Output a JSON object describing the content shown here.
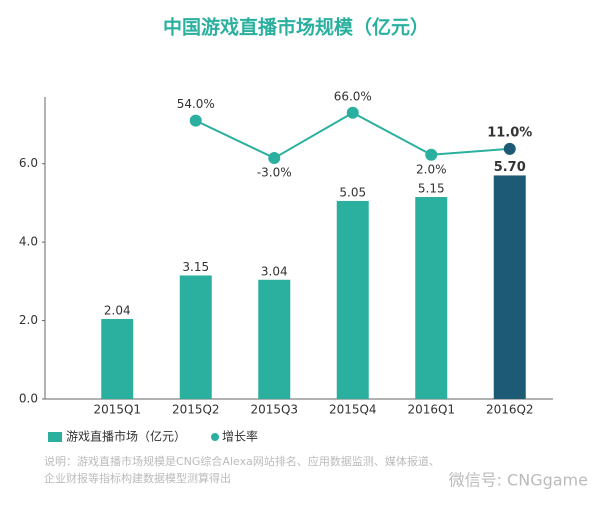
{
  "chart_data": {
    "type": "bar_line",
    "title": "中国游戏直播市场规模（亿元）",
    "categories": [
      "2015Q1",
      "2015Q2",
      "2015Q3",
      "2015Q4",
      "2016Q1",
      "2016Q2"
    ],
    "series": [
      {
        "name": "游戏直播市场（亿元）",
        "type": "bar",
        "colors": [
          "#2bb09f",
          "#2bb09f",
          "#2bb09f",
          "#2bb09f",
          "#2bb09f",
          "#1c5a76"
        ],
        "values": [
          2.04,
          3.15,
          3.04,
          5.05,
          5.15,
          5.7
        ],
        "value_labels": [
          "2.04",
          "3.15",
          "3.04",
          "5.05",
          "5.15",
          "5.70"
        ]
      },
      {
        "name": "增长率",
        "type": "line",
        "axis": "y2",
        "color": "#2bb09f",
        "colors": [
          null,
          "#2bb09f",
          "#2bb09f",
          "#2bb09f",
          "#2bb09f",
          "#1c5a76"
        ],
        "values": [
          null,
          54.0,
          -3.0,
          66.0,
          2.0,
          11.0
        ],
        "value_labels": [
          null,
          "54.0%",
          "-3.0%",
          "66.0%",
          "2.0%",
          "11.0%"
        ]
      }
    ],
    "ylim": [
      0,
      7.7
    ],
    "yticks": [
      {
        "value": 0,
        "label": "0.0"
      },
      {
        "value": 2,
        "label": "2.0"
      },
      {
        "value": 4,
        "label": "4.0"
      },
      {
        "value": 6,
        "label": "6.0"
      }
    ],
    "y2lim": [
      -370,
      90
    ],
    "note": [
      "说明：游戏直播市场规模是CNG综合Alexa网站排名、应用数据监测、媒体报道、",
      "企业财报等指标构建数据模型测算得出"
    ],
    "watermark": "微信号: CNGgame"
  }
}
